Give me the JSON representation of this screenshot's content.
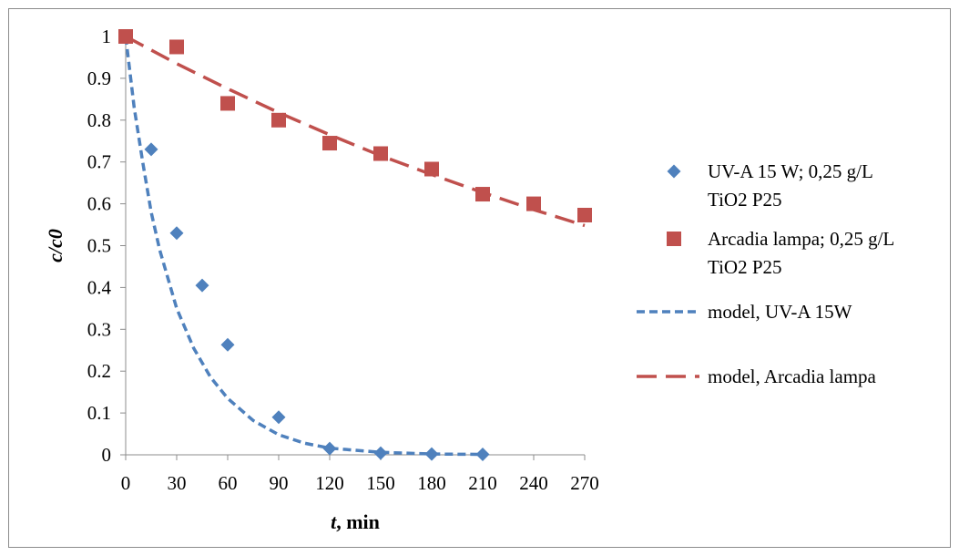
{
  "chart_data": {
    "type": "scatter",
    "xlabel_italic": "t",
    "xlabel_rest": ", min",
    "ylabel": "c/c0",
    "xlim": [
      0,
      270
    ],
    "ylim": [
      0,
      1
    ],
    "x_ticks": [
      0,
      30,
      60,
      90,
      120,
      150,
      180,
      210,
      240,
      270
    ],
    "y_ticks": [
      0,
      0.1,
      0.2,
      0.3,
      0.4,
      0.5,
      0.6,
      0.7,
      0.8,
      0.9,
      1
    ],
    "grid": false,
    "legend_position": "right",
    "series": [
      {
        "name": "UV-A 15 W; 0,25 g/L TiO2 P25",
        "legend_lines": [
          "UV-A 15 W; 0,25 g/L",
          "TiO2 P25"
        ],
        "kind": "markers",
        "marker": "diamond",
        "color": "#4f81bd",
        "x": [
          0,
          15,
          30,
          45,
          60,
          90,
          120,
          150,
          180,
          210
        ],
        "y": [
          1.0,
          0.73,
          0.53,
          0.405,
          0.263,
          0.09,
          0.015,
          0.004,
          0.002,
          0.001
        ]
      },
      {
        "name": "Arcadia lampa; 0,25 g/L TiO2 P25",
        "legend_lines": [
          "Arcadia lampa; 0,25 g/L",
          "TiO2 P25"
        ],
        "kind": "markers",
        "marker": "square",
        "color": "#c0504d",
        "x": [
          0,
          30,
          60,
          90,
          120,
          150,
          180,
          210,
          240,
          270
        ],
        "y": [
          1.0,
          0.975,
          0.84,
          0.8,
          0.745,
          0.72,
          0.683,
          0.623,
          0.6,
          0.573
        ]
      },
      {
        "name": "model, UV-A 15W",
        "legend_lines": [
          "model, UV-A 15W"
        ],
        "kind": "line",
        "dash": "short",
        "color": "#4f81bd",
        "x": [
          0,
          5,
          10,
          15,
          20,
          30,
          40,
          50,
          60,
          75,
          90,
          105,
          120,
          150,
          180,
          210
        ],
        "y": [
          1.0,
          0.83,
          0.7,
          0.58,
          0.49,
          0.35,
          0.255,
          0.185,
          0.135,
          0.082,
          0.048,
          0.028,
          0.016,
          0.006,
          0.002,
          0.001
        ]
      },
      {
        "name": "model, Arcadia lampa",
        "legend_lines": [
          "model, Arcadia lampa"
        ],
        "kind": "line",
        "dash": "long",
        "color": "#c0504d",
        "x": [
          0,
          30,
          60,
          90,
          120,
          150,
          180,
          210,
          240,
          270
        ],
        "y": [
          1.0,
          0.935,
          0.875,
          0.818,
          0.765,
          0.715,
          0.67,
          0.627,
          0.586,
          0.548
        ]
      }
    ]
  }
}
